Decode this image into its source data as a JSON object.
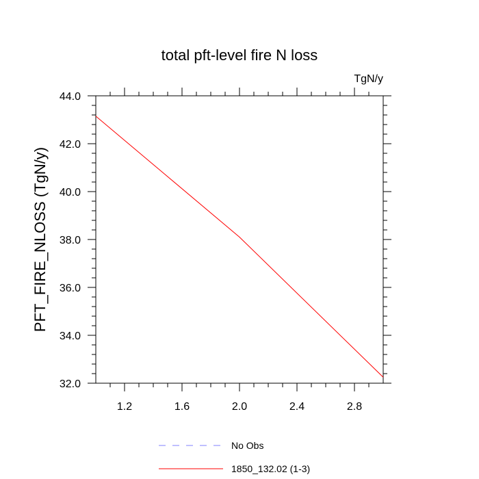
{
  "chart_data": {
    "type": "line",
    "title": "total pft-level fire N loss",
    "units_label": "TgN/y",
    "ylabel": "PFT_FIRE_NLOSS  (TgN/y)",
    "xlabel": "",
    "xlim": [
      1.0,
      3.0
    ],
    "ylim": [
      32.0,
      44.0
    ],
    "x_ticks": [
      1.2,
      1.6,
      2.0,
      2.4,
      2.8
    ],
    "x_tick_labels": [
      "1.2",
      "1.6",
      "2.0",
      "2.4",
      "2.8"
    ],
    "y_ticks": [
      32.0,
      34.0,
      36.0,
      38.0,
      40.0,
      42.0,
      44.0
    ],
    "y_tick_labels": [
      "32.0",
      "34.0",
      "36.0",
      "38.0",
      "40.0",
      "42.0",
      "44.0"
    ],
    "grid": false,
    "legend_placement": "bottom",
    "series": [
      {
        "name": "No Obs",
        "color": "#8080ff",
        "dash": "dashed",
        "x": [],
        "y": []
      },
      {
        "name": "1850_132.02 (1-3)",
        "color": "#ff0000",
        "dash": "solid",
        "x": [
          1.0,
          2.0,
          3.0
        ],
        "y": [
          43.15,
          38.1,
          32.25
        ]
      }
    ]
  }
}
